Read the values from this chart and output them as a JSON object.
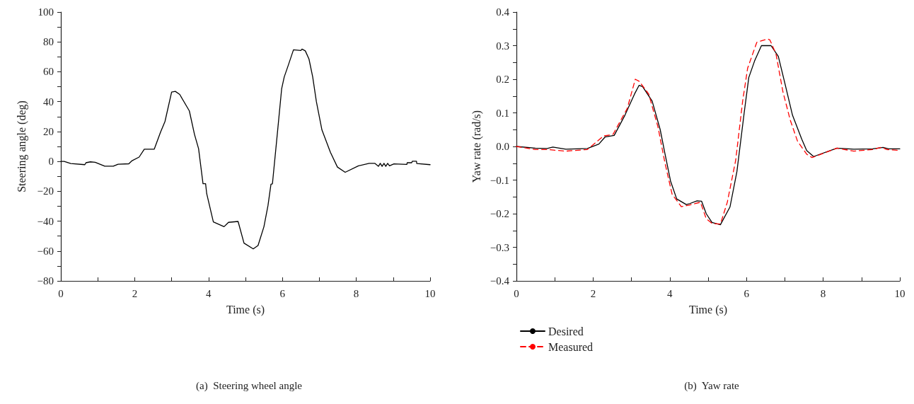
{
  "chart_data": [
    {
      "type": "line",
      "title": "(a)  Steering wheel angle",
      "xlabel": "Time (s)",
      "ylabel": "Steering angle (deg)",
      "xlim": [
        0,
        10
      ],
      "ylim": [
        -80,
        100
      ],
      "xticks": [
        0,
        {
          "value": 1,
          "label": null
        },
        2,
        {
          "value": 3,
          "label": null
        },
        4,
        {
          "value": 5,
          "label": null
        },
        6,
        {
          "value": 7,
          "label": null
        },
        8,
        {
          "value": 9,
          "label": null
        },
        10
      ],
      "yticks": [
        {
          "value": -80,
          "label": "−80"
        },
        {
          "value": -70,
          "label": null
        },
        {
          "value": -60,
          "label": "−60"
        },
        {
          "value": -50,
          "label": null
        },
        {
          "value": -40,
          "label": "−40"
        },
        {
          "value": -30,
          "label": null
        },
        {
          "value": -20,
          "label": "−20"
        },
        {
          "value": -10,
          "label": null
        },
        0,
        {
          "value": 10,
          "label": null
        },
        20,
        {
          "value": 30,
          "label": null
        },
        40,
        {
          "value": 50,
          "label": null
        },
        60,
        {
          "value": 70,
          "label": null
        },
        80,
        {
          "value": 90,
          "label": null
        },
        100
      ],
      "grid": false,
      "legend": false,
      "marker": "none",
      "line_style": "solid",
      "color": "#000000",
      "x": [
        0,
        0.09,
        0.27,
        0.65,
        0.68,
        0.8,
        0.93,
        1.19,
        1.42,
        1.55,
        1.84,
        1.93,
        2.12,
        2.26,
        2.53,
        2.7,
        2.82,
        3.0,
        3.1,
        3.22,
        3.48,
        3.62,
        3.73,
        3.85,
        3.92,
        3.95,
        4.13,
        4.42,
        4.54,
        4.8,
        4.96,
        5.21,
        5.34,
        5.5,
        5.61,
        5.69,
        5.73,
        5.86,
        5.98,
        6.05,
        6.15,
        6.3,
        6.5,
        6.53,
        6.62,
        6.72,
        6.82,
        6.92,
        7.07,
        7.3,
        7.49,
        7.7,
        8.06,
        8.35,
        8.5,
        8.6,
        8.65,
        8.7,
        8.75,
        8.8,
        8.85,
        8.9,
        9.02,
        9.37,
        9.38,
        9.5,
        9.52,
        9.63,
        9.64,
        10
      ],
      "values": [
        0,
        0,
        -1.4,
        -2.2,
        -0.9,
        -0.3,
        -0.6,
        -3.2,
        -3.2,
        -1.9,
        -1.6,
        0.5,
        2.9,
        8.2,
        8.2,
        19.6,
        26.7,
        46.4,
        46.9,
        44.8,
        33.8,
        18,
        8.5,
        -14.9,
        -14.9,
        -21.6,
        -40.5,
        -43.7,
        -40.8,
        -40.2,
        -54.7,
        -58.6,
        -56.3,
        -43.7,
        -29.5,
        -15.3,
        -15,
        17.9,
        48.7,
        56.6,
        63.7,
        74.7,
        74.2,
        75.2,
        74,
        68.5,
        56.6,
        40,
        21.1,
        6.1,
        -3.8,
        -7.3,
        -3,
        -1.3,
        -1.3,
        -3.3,
        -1.3,
        -3.3,
        -1.3,
        -3.3,
        -1.3,
        -3,
        -1.7,
        -2,
        -0.9,
        -0.9,
        0.1,
        0.1,
        -1.4,
        -2.2
      ]
    },
    {
      "type": "line",
      "title": "(b)  Yaw rate",
      "xlabel": "Time (s)",
      "ylabel": "Yaw rate (rad/s)",
      "xlim": [
        0,
        10
      ],
      "ylim": [
        -0.4,
        0.4
      ],
      "xticks": [
        0,
        {
          "value": 1,
          "label": null
        },
        2,
        {
          "value": 3,
          "label": null
        },
        4,
        {
          "value": 5,
          "label": null
        },
        6,
        {
          "value": 7,
          "label": null
        },
        8,
        {
          "value": 9,
          "label": null
        },
        10
      ],
      "yticks": [
        {
          "value": -0.4,
          "label": "−0.4"
        },
        {
          "value": -0.35,
          "label": null
        },
        {
          "value": -0.3,
          "label": "−0.3"
        },
        {
          "value": -0.25,
          "label": null
        },
        {
          "value": -0.2,
          "label": "−0.2"
        },
        {
          "value": -0.15,
          "label": null
        },
        {
          "value": -0.1,
          "label": "−0.1"
        },
        {
          "value": -0.05,
          "label": null
        },
        {
          "value": 0,
          "label": "0.0"
        },
        {
          "value": 0.05,
          "label": null
        },
        0.1,
        {
          "value": 0.15,
          "label": null
        },
        0.2,
        {
          "value": 0.25,
          "label": null
        },
        0.3,
        {
          "value": 0.35,
          "label": null
        },
        0.4
      ],
      "grid": false,
      "legend": "bottom left",
      "marker": "none",
      "series": [
        {
          "name": "Desired",
          "color": "#000000",
          "line_style": "solid",
          "x": [
            0,
            0.49,
            0.8,
            0.95,
            1.29,
            1.85,
            2.15,
            2.31,
            2.55,
            2.83,
            3.08,
            3.2,
            3.29,
            3.54,
            3.75,
            3.87,
            4.02,
            4.18,
            4.43,
            4.52,
            4.71,
            4.83,
            4.95,
            5.1,
            5.32,
            5.57,
            5.75,
            5.94,
            6.06,
            6.21,
            6.39,
            6.64,
            6.83,
            7.01,
            7.2,
            7.44,
            7.57,
            7.75,
            8.36,
            8.8,
            9.29,
            9.56,
            9.71,
            10
          ],
          "values": [
            0,
            -0.005,
            -0.006,
            -0.002,
            -0.008,
            -0.006,
            0.007,
            0.028,
            0.033,
            0.093,
            0.156,
            0.182,
            0.178,
            0.135,
            0.05,
            -0.019,
            -0.103,
            -0.156,
            -0.173,
            -0.17,
            -0.162,
            -0.163,
            -0.2,
            -0.226,
            -0.233,
            -0.18,
            -0.075,
            0.1,
            0.205,
            0.254,
            0.3,
            0.3,
            0.268,
            0.184,
            0.093,
            0.022,
            -0.012,
            -0.03,
            -0.005,
            -0.008,
            -0.007,
            -0.003,
            -0.007,
            -0.007
          ]
        },
        {
          "name": "Measured",
          "color": "#ff0000",
          "line_style": "dashed",
          "x": [
            0,
            0.49,
            0.8,
            1.29,
            1.85,
            2.27,
            2.52,
            2.89,
            3.1,
            3.2,
            3.45,
            3.69,
            3.87,
            4.06,
            4.3,
            4.49,
            4.8,
            4.95,
            5.1,
            5.32,
            5.5,
            5.72,
            5.9,
            6.03,
            6.27,
            6.55,
            6.61,
            6.77,
            6.95,
            7.14,
            7.33,
            7.57,
            7.71,
            8.36,
            8.8,
            9.29,
            9.53,
            9.65,
            10
          ],
          "values": [
            0,
            -0.009,
            -0.009,
            -0.014,
            -0.009,
            0.031,
            0.036,
            0.113,
            0.2,
            0.194,
            0.156,
            0.059,
            -0.047,
            -0.142,
            -0.179,
            -0.175,
            -0.166,
            -0.215,
            -0.229,
            -0.231,
            -0.166,
            -0.04,
            0.135,
            0.233,
            0.31,
            0.32,
            0.317,
            0.275,
            0.163,
            0.079,
            0.016,
            -0.023,
            -0.033,
            -0.005,
            -0.014,
            -0.009,
            -0.002,
            -0.009,
            -0.012
          ]
        }
      ]
    }
  ]
}
